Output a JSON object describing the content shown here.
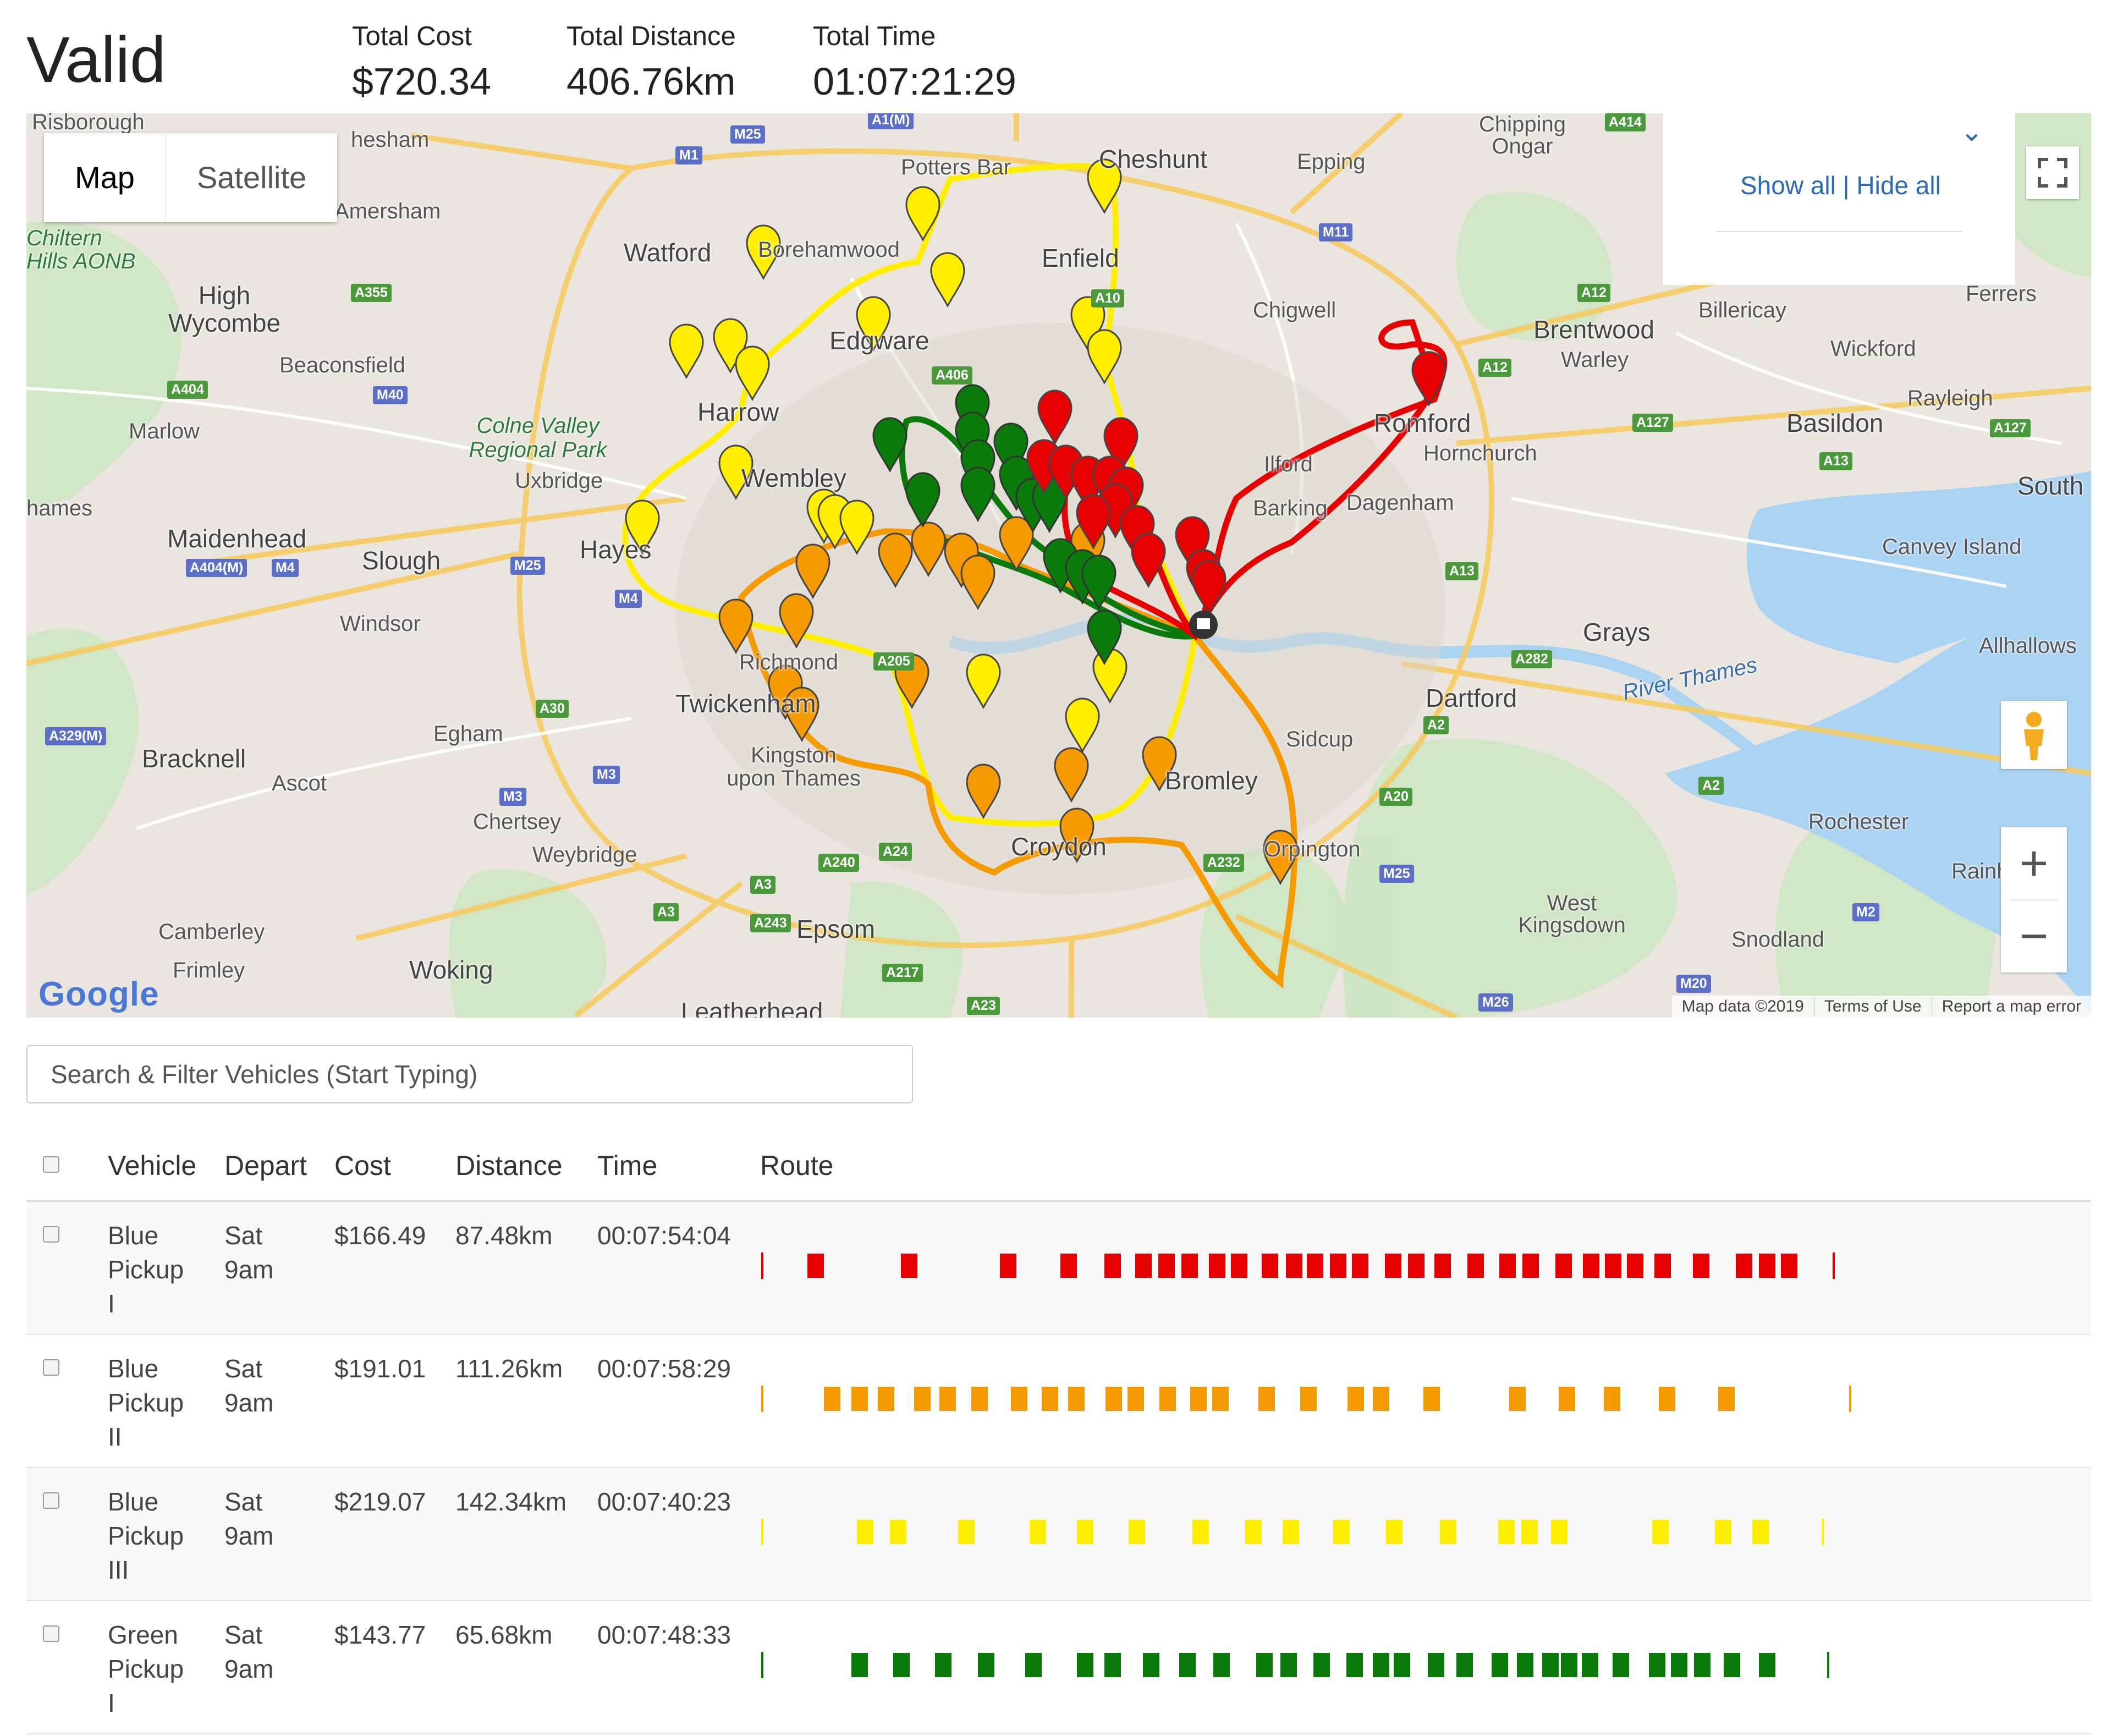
{
  "status": "Valid",
  "totals": {
    "cost_label": "Total Cost",
    "cost_value": "$720.34",
    "distance_label": "Total Distance",
    "distance_value": "406.76km",
    "time_label": "Total Time",
    "time_value": "01:07:21:29"
  },
  "map": {
    "type_map": "Map",
    "type_satellite": "Satellite",
    "show_all": "Show all",
    "separator": "|",
    "hide_all": "Hide all",
    "chevron": "⌄",
    "logo": "Google",
    "attribution": {
      "data": "Map data ©2019",
      "terms": "Terms of Use",
      "report": "Report a map error"
    },
    "icons": {
      "fullscreen": "fullscreen-icon",
      "pegman": "pegman-icon",
      "zoom_in": "plus-icon",
      "zoom_out": "minus-icon",
      "depot": "depot-marker-icon",
      "stop": "map-marker-icon"
    },
    "zoom_in_label": "+",
    "zoom_out_label": "−",
    "places": [
      {
        "name": "Risborough"
      },
      {
        "name": "hesham"
      },
      {
        "name": "Amersham"
      },
      {
        "name": "Chiltern Hills AONB"
      },
      {
        "name": "High Wycombe"
      },
      {
        "name": "Beaconsfield"
      },
      {
        "name": "Marlow"
      },
      {
        "name": "Colne Valley Regional Park"
      },
      {
        "name": "Uxbridge"
      },
      {
        "name": "hames"
      },
      {
        "name": "Maidenhead"
      },
      {
        "name": "Slough"
      },
      {
        "name": "Windsor"
      },
      {
        "name": "Bracknell"
      },
      {
        "name": "Ascot"
      },
      {
        "name": "Egham"
      },
      {
        "name": "Chertsey"
      },
      {
        "name": "Weybridge"
      },
      {
        "name": "Camberley"
      },
      {
        "name": "Frimley"
      },
      {
        "name": "Woking"
      },
      {
        "name": "Watford"
      },
      {
        "name": "Borehamwood"
      },
      {
        "name": "Potters Bar"
      },
      {
        "name": "Cheshunt"
      },
      {
        "name": "Enfield"
      },
      {
        "name": "Epping"
      },
      {
        "name": "Chipping Ongar"
      },
      {
        "name": "Chigwell"
      },
      {
        "name": "Edgware"
      },
      {
        "name": "Harrow"
      },
      {
        "name": "Wembley"
      },
      {
        "name": "Hayes"
      },
      {
        "name": "Richmond"
      },
      {
        "name": "Twickenham"
      },
      {
        "name": "Kingston upon Thames"
      },
      {
        "name": "Croydon"
      },
      {
        "name": "Epsom"
      },
      {
        "name": "Leatherhead"
      },
      {
        "name": "Bromley"
      },
      {
        "name": "Orpington"
      },
      {
        "name": "Sidcup"
      },
      {
        "name": "Ilford"
      },
      {
        "name": "Barking"
      },
      {
        "name": "Dagenham"
      },
      {
        "name": "Romford"
      },
      {
        "name": "Hornchurch"
      },
      {
        "name": "Brentwood"
      },
      {
        "name": "Warley"
      },
      {
        "name": "Billericay"
      },
      {
        "name": "Wickford"
      },
      {
        "name": "Basildon"
      },
      {
        "name": "Rayleigh"
      },
      {
        "name": "South"
      },
      {
        "name": "Canvey Island"
      },
      {
        "name": "Grays"
      },
      {
        "name": "River Thames"
      },
      {
        "name": "Dartford"
      },
      {
        "name": "Allhallows"
      },
      {
        "name": "Rochester"
      },
      {
        "name": "West Kingsdown"
      },
      {
        "name": "Snodland"
      },
      {
        "name": "Rainh"
      },
      {
        "name": "Ferrers"
      }
    ],
    "roads": [
      "M1",
      "M25",
      "M11",
      "A414",
      "A355",
      "A404",
      "M40",
      "M25",
      "M4",
      "A404(M)",
      "M4",
      "A329(M)",
      "M3",
      "M3",
      "A30",
      "A406",
      "A10",
      "A12",
      "A12",
      "A127",
      "A127",
      "A13",
      "A13",
      "A205",
      "A24",
      "A240",
      "A3",
      "A3",
      "A243",
      "A217",
      "A23",
      "A232",
      "M25",
      "A20",
      "A2",
      "A282",
      "M2",
      "M20",
      "M26",
      "A2",
      "A1(M)",
      "M4"
    ]
  },
  "search": {
    "placeholder": "Search & Filter Vehicles (Start Typing)"
  },
  "table": {
    "headers": {
      "vehicle": "Vehicle",
      "depart": "Depart",
      "cost": "Cost",
      "distance": "Distance",
      "time": "Time",
      "route": "Route"
    },
    "rows": [
      {
        "vehicle_line1": "Blue",
        "vehicle_line2": "Pickup",
        "vehicle_line3": "I",
        "depart_line1": "Sat",
        "depart_line2": "9am",
        "cost": "$166.49",
        "distance": "87.48km",
        "time": "00:07:54:04",
        "color": "#e60000"
      },
      {
        "vehicle_line1": "Blue",
        "vehicle_line2": "Pickup",
        "vehicle_line3": "II",
        "depart_line1": "Sat",
        "depart_line2": "9am",
        "cost": "$191.01",
        "distance": "111.26km",
        "time": "00:07:58:29",
        "color": "#f59a00"
      },
      {
        "vehicle_line1": "Blue",
        "vehicle_line2": "Pickup",
        "vehicle_line3": "III",
        "depart_line1": "Sat",
        "depart_line2": "9am",
        "cost": "$219.07",
        "distance": "142.34km",
        "time": "00:07:40:23",
        "color": "#ffee00"
      },
      {
        "vehicle_line1": "Green",
        "vehicle_line2": "Pickup",
        "vehicle_line3": "I",
        "depart_line1": "Sat",
        "depart_line2": "9am",
        "cost": "$143.77",
        "distance": "65.68km",
        "time": "00:07:48:33",
        "color": "#0a7a0a"
      }
    ]
  }
}
